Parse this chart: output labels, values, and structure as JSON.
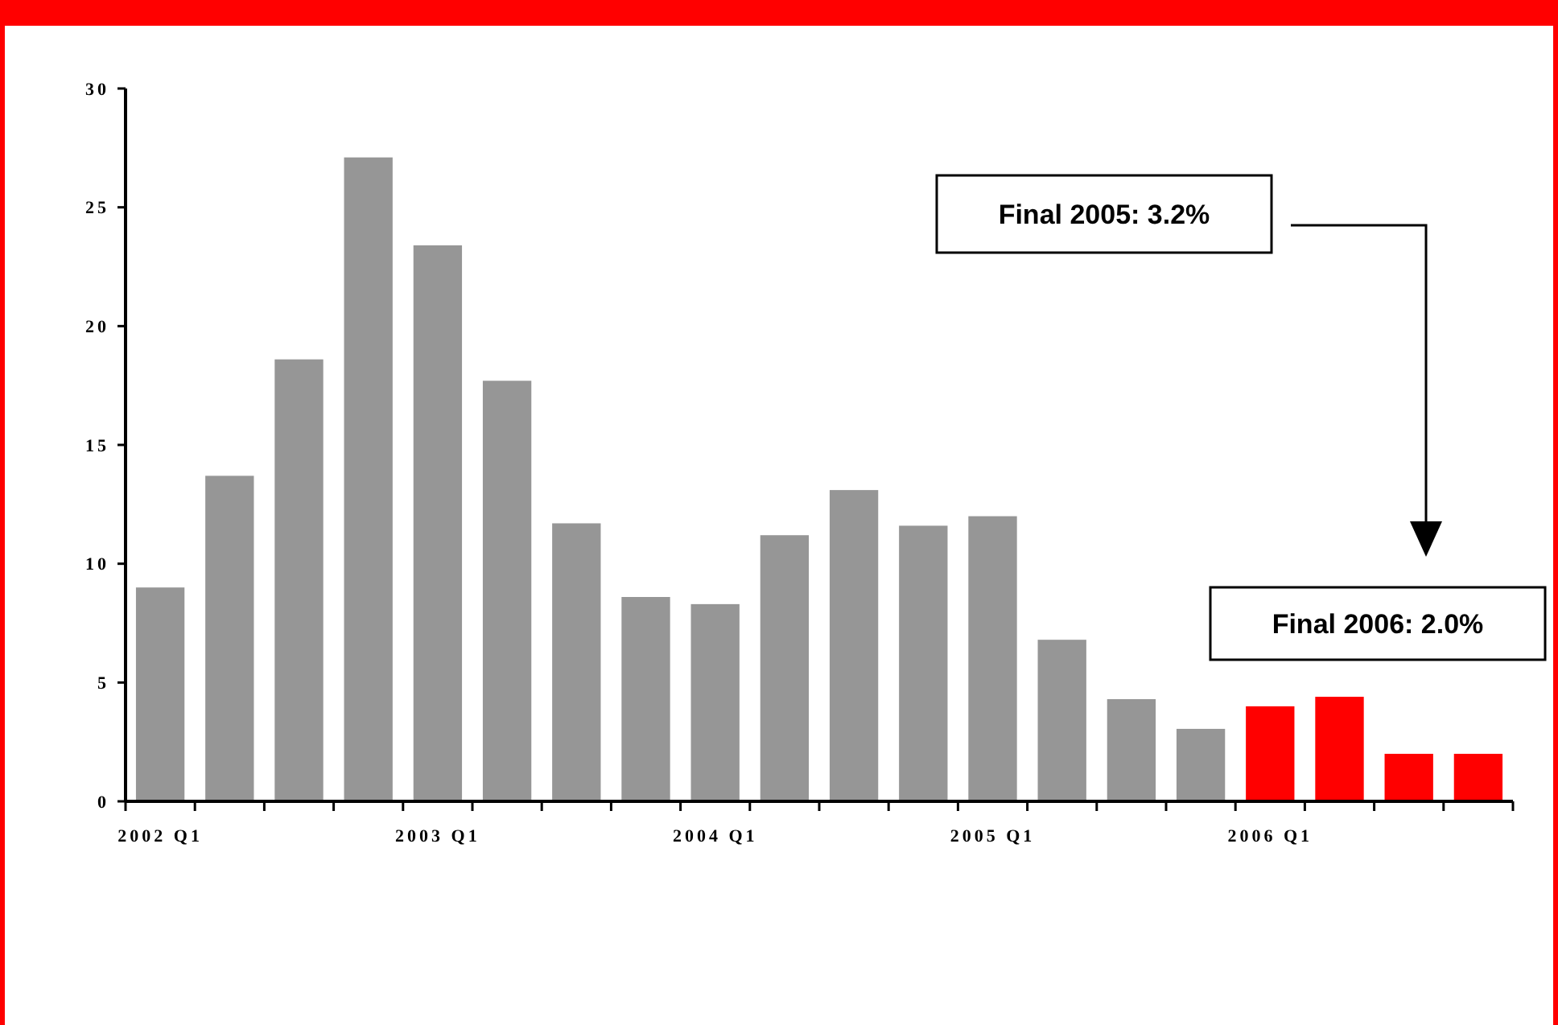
{
  "chart_data": {
    "type": "bar",
    "categories": [
      "2002 Q1",
      null,
      null,
      null,
      "2003 Q1",
      null,
      null,
      null,
      "2004 Q1",
      null,
      null,
      null,
      "2005 Q1",
      null,
      null,
      null,
      "2006 Q1",
      null,
      null,
      null
    ],
    "values": [
      9.0,
      13.7,
      18.6,
      27.1,
      23.4,
      17.7,
      11.7,
      8.6,
      8.3,
      11.2,
      13.1,
      11.6,
      12.0,
      6.8,
      4.3,
      3.05,
      4.0,
      4.4,
      2.0,
      2.0
    ],
    "colors": [
      "#969696",
      "#969696",
      "#969696",
      "#969696",
      "#969696",
      "#969696",
      "#969696",
      "#969696",
      "#969696",
      "#969696",
      "#969696",
      "#969696",
      "#969696",
      "#969696",
      "#969696",
      "#969696",
      "#ff0000",
      "#ff0000",
      "#ff0000",
      "#ff0000"
    ],
    "ylim": [
      0,
      30
    ],
    "yticks": [
      0,
      5,
      10,
      15,
      20,
      25,
      30
    ],
    "grid": false,
    "annotations": [
      "Final 2005: 3.2%",
      "Final 2006: 2.0%"
    ]
  }
}
